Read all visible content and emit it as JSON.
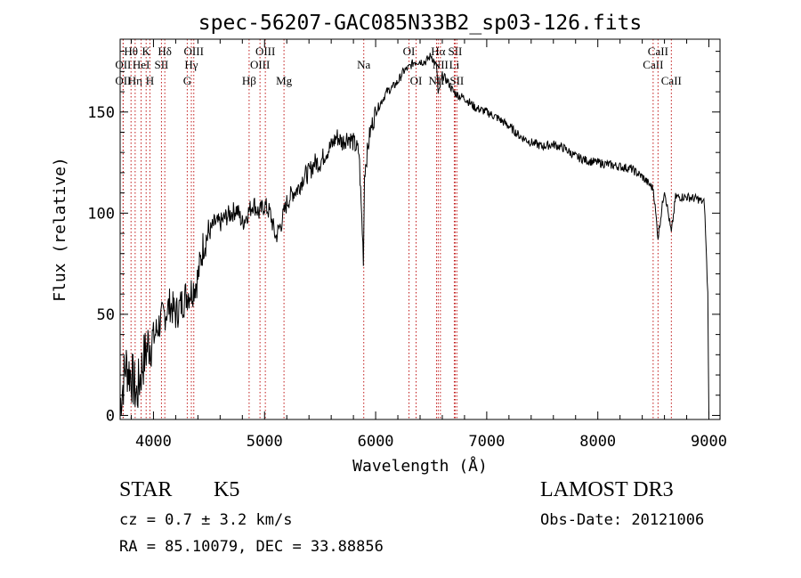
{
  "chart_data": {
    "type": "line",
    "title": "spec-56207-GAC085N33B2_sp03-126.fits",
    "xlabel": "Wavelength (Å)",
    "ylabel": "Flux (relative)",
    "xlim": [
      3700,
      9100
    ],
    "ylim": [
      -2,
      186
    ],
    "xticks": [
      4000,
      5000,
      6000,
      7000,
      8000,
      9000
    ],
    "yticks": [
      0,
      50,
      100,
      150
    ],
    "grid": false,
    "line_color": "#000000",
    "marker_color": "#c01818",
    "spectrum": {
      "name": "flux",
      "x": [
        3700,
        3750,
        3800,
        3850,
        3900,
        3950,
        4000,
        4050,
        4100,
        4150,
        4200,
        4250,
        4300,
        4350,
        4400,
        4450,
        4500,
        4550,
        4600,
        4650,
        4700,
        4750,
        4800,
        4850,
        4900,
        4950,
        5000,
        5050,
        5100,
        5150,
        5200,
        5250,
        5300,
        5350,
        5400,
        5450,
        5500,
        5550,
        5600,
        5650,
        5700,
        5750,
        5800,
        5850,
        5890,
        5900,
        5950,
        6000,
        6050,
        6100,
        6150,
        6200,
        6250,
        6300,
        6350,
        6400,
        6450,
        6500,
        6550,
        6563,
        6600,
        6650,
        6700,
        6750,
        6800,
        6900,
        7000,
        7100,
        7200,
        7300,
        7400,
        7500,
        7600,
        7700,
        7800,
        7900,
        8000,
        8100,
        8200,
        8300,
        8400,
        8500,
        8542,
        8600,
        8662,
        8700,
        8800,
        8900,
        8960,
        8990,
        9000
      ],
      "y": [
        5,
        25,
        20,
        10,
        25,
        35,
        38,
        45,
        50,
        55,
        50,
        55,
        60,
        62,
        68,
        85,
        90,
        95,
        95,
        98,
        100,
        102,
        95,
        100,
        105,
        100,
        104,
        100,
        88,
        95,
        105,
        110,
        112,
        118,
        120,
        125,
        125,
        130,
        133,
        138,
        135,
        138,
        135,
        130,
        78,
        120,
        140,
        150,
        155,
        160,
        162,
        165,
        170,
        172,
        175,
        175,
        175,
        178,
        172,
        158,
        168,
        165,
        160,
        158,
        157,
        152,
        150,
        147,
        143,
        138,
        135,
        133,
        134,
        132,
        128,
        126,
        125,
        124,
        123,
        122,
        118,
        112,
        88,
        112,
        90,
        108,
        108,
        107,
        105,
        60,
        0
      ]
    },
    "spectral_lines": [
      {
        "label": "Hθ",
        "wavelength": 3798,
        "row": 1
      },
      {
        "label": "OII",
        "wavelength": 3727,
        "row": 2
      },
      {
        "label": "OII",
        "wavelength": 3727,
        "row": 3
      },
      {
        "label": "Hη",
        "wavelength": 3835,
        "row": 3
      },
      {
        "label": "HeI",
        "wavelength": 3889,
        "row": 2
      },
      {
        "label": "K",
        "wavelength": 3934,
        "row": 1
      },
      {
        "label": "H",
        "wavelength": 3968,
        "row": 3
      },
      {
        "label": "SII",
        "wavelength": 4072,
        "row": 2
      },
      {
        "label": "Hδ",
        "wavelength": 4102,
        "row": 1
      },
      {
        "label": "G",
        "wavelength": 4304,
        "row": 3
      },
      {
        "label": "Hγ",
        "wavelength": 4341,
        "row": 2
      },
      {
        "label": "OIII",
        "wavelength": 4363,
        "row": 1
      },
      {
        "label": "Hβ",
        "wavelength": 4861,
        "row": 3
      },
      {
        "label": "OIII",
        "wavelength": 4959,
        "row": 2
      },
      {
        "label": "OIII",
        "wavelength": 5007,
        "row": 1
      },
      {
        "label": "Mg",
        "wavelength": 5175,
        "row": 3
      },
      {
        "label": "Na",
        "wavelength": 5893,
        "row": 2
      },
      {
        "label": "OI",
        "wavelength": 6300,
        "row": 1
      },
      {
        "label": "OI",
        "wavelength": 6364,
        "row": 3
      },
      {
        "label": "NII",
        "wavelength": 6548,
        "row": 3
      },
      {
        "label": "Hα",
        "wavelength": 6563,
        "row": 1
      },
      {
        "label": "NII",
        "wavelength": 6583,
        "row": 2
      },
      {
        "label": "Li",
        "wavelength": 6708,
        "row": 2
      },
      {
        "label": "SII",
        "wavelength": 6716,
        "row": 1
      },
      {
        "label": "SII",
        "wavelength": 6731,
        "row": 3
      },
      {
        "label": "CaII",
        "wavelength": 8498,
        "row": 2
      },
      {
        "label": "CaII",
        "wavelength": 8542,
        "row": 1
      },
      {
        "label": "CaII",
        "wavelength": 8662,
        "row": 3
      }
    ]
  },
  "info": {
    "class": "STAR",
    "subclass": "K5",
    "survey": "LAMOST DR3",
    "cz": "cz = 0.7 ± 3.2 km/s",
    "obs_date": "Obs-Date: 20121006",
    "radec": "RA =  85.10079, DEC =  33.88856"
  }
}
